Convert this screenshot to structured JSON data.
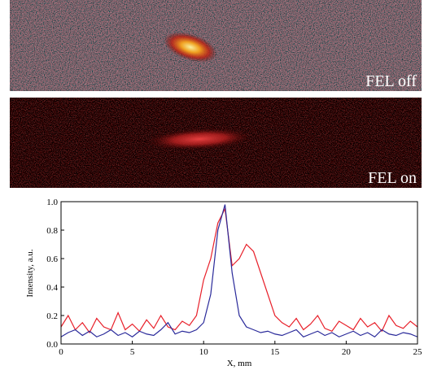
{
  "panels": [
    {
      "label": "FEL off"
    },
    {
      "label": "FEL on"
    }
  ],
  "chart_data": {
    "type": "line",
    "xlabel": "X, mm",
    "ylabel": "Intensity, a.u.",
    "x": [
      0,
      0.5,
      1,
      1.5,
      2,
      2.5,
      3,
      3.5,
      4,
      4.5,
      5,
      5.5,
      6,
      6.5,
      7,
      7.5,
      8,
      8.5,
      9,
      9.5,
      10,
      10.5,
      11,
      11.5,
      12,
      12.5,
      13,
      13.5,
      14,
      14.5,
      15,
      15.5,
      16,
      16.5,
      17,
      17.5,
      18,
      18.5,
      19,
      19.5,
      20,
      20.5,
      21,
      21.5,
      22,
      22.5,
      23,
      23.5,
      24,
      24.5,
      25
    ],
    "series": [
      {
        "color": "#e8202a",
        "values": [
          0.12,
          0.2,
          0.1,
          0.15,
          0.08,
          0.18,
          0.12,
          0.1,
          0.22,
          0.1,
          0.14,
          0.09,
          0.17,
          0.11,
          0.2,
          0.12,
          0.1,
          0.16,
          0.13,
          0.2,
          0.45,
          0.6,
          0.85,
          0.95,
          0.55,
          0.6,
          0.7,
          0.65,
          0.5,
          0.35,
          0.2,
          0.15,
          0.12,
          0.18,
          0.1,
          0.14,
          0.2,
          0.11,
          0.09,
          0.16,
          0.13,
          0.1,
          0.18,
          0.12,
          0.15,
          0.09,
          0.2,
          0.13,
          0.11,
          0.16,
          0.12
        ]
      },
      {
        "color": "#2a2a9a",
        "values": [
          0.05,
          0.08,
          0.1,
          0.06,
          0.09,
          0.05,
          0.07,
          0.1,
          0.06,
          0.08,
          0.05,
          0.09,
          0.07,
          0.06,
          0.1,
          0.15,
          0.07,
          0.09,
          0.08,
          0.1,
          0.15,
          0.35,
          0.8,
          0.98,
          0.5,
          0.2,
          0.12,
          0.1,
          0.08,
          0.09,
          0.07,
          0.06,
          0.08,
          0.1,
          0.05,
          0.07,
          0.09,
          0.06,
          0.08,
          0.05,
          0.07,
          0.09,
          0.06,
          0.08,
          0.05,
          0.1,
          0.07,
          0.06,
          0.08,
          0.07,
          0.05
        ]
      }
    ],
    "xlim": [
      0,
      25
    ],
    "xticks": [
      0,
      5,
      10,
      15,
      20,
      25
    ],
    "ylim": [
      0,
      1
    ],
    "yticks": [
      {
        "value": 0,
        "label": "0.0"
      },
      0.2,
      0.4,
      0.6,
      0.8,
      {
        "value": 1,
        "label": "1.0"
      }
    ]
  }
}
